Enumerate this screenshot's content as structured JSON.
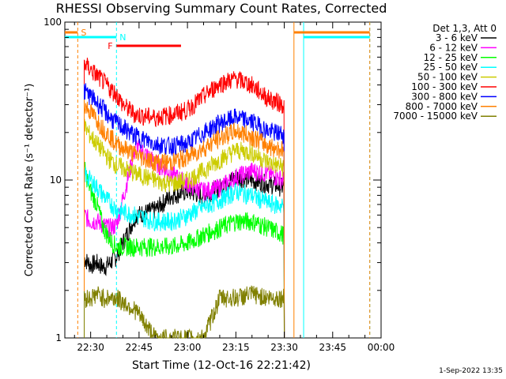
{
  "chart_data": {
    "type": "line",
    "title": "RHESSI Observing Summary Count Rates, Corrected",
    "xlabel": "Start Time (12-Oct-16 22:21:42)",
    "ylabel": "Corrected Count Rate (s⁻¹ detector⁻¹)",
    "y_scale": "log",
    "ylim": [
      1,
      100
    ],
    "xlim_minutes": [
      22.0,
      120.0
    ],
    "x_ticks": [
      "22:30",
      "22:45",
      "23:00",
      "23:15",
      "23:30",
      "23:45",
      "00:00"
    ],
    "x_tick_minutes": [
      30,
      45,
      60,
      75,
      90,
      105,
      120
    ],
    "y_ticks": [
      "1",
      "10",
      "100"
    ],
    "grid": false,
    "legend_title": "Det 1,3, Att 0",
    "legend_position": "right",
    "timestamp": "1-Sep-2022 13:35",
    "flags": [
      {
        "label": "S",
        "color": "#ff8000",
        "start_min": 22.0,
        "end_min": 26.0,
        "resume_min": 93.0,
        "resume_end_min": 116.5
      },
      {
        "label": "N",
        "color": "#00ffff",
        "start_min": 22.0,
        "end_min": 38.0,
        "resume_min": 96.0,
        "resume_end_min": 116.5
      },
      {
        "label": "F",
        "color": "#ff0000",
        "start_min": 38.0,
        "end_min": 58.0
      }
    ],
    "vertical_markers": [
      {
        "minute": 26.0,
        "color": "#ff8000",
        "style": "dashed"
      },
      {
        "minute": 38.0,
        "color": "#00ffff",
        "style": "dashed"
      },
      {
        "minute": 93.0,
        "color": "#ff8000",
        "style": "solid"
      },
      {
        "minute": 96.0,
        "color": "#00ffff",
        "style": "solid"
      },
      {
        "minute": 116.5,
        "color": "#00ffff",
        "style": "dashed"
      },
      {
        "minute": 116.5,
        "color": "#ff8000",
        "style": "dashed"
      }
    ],
    "series": [
      {
        "name": "3 - 6 keV",
        "color": "#000000",
        "x": [
          28,
          30,
          32,
          34,
          36,
          38,
          44,
          50,
          55,
          60,
          65,
          70,
          75,
          80,
          85,
          90
        ],
        "y": [
          3.2,
          2.9,
          3.0,
          2.8,
          3.0,
          3.3,
          6.0,
          6.5,
          8.0,
          8.5,
          8.0,
          9.0,
          10.5,
          10.0,
          9.5,
          9.0
        ]
      },
      {
        "name": "6 - 12 keV",
        "color": "#ff00ff",
        "x": [
          28,
          30,
          32,
          34,
          36,
          38,
          44,
          50,
          55,
          60,
          65,
          70,
          75,
          80,
          85,
          90
        ],
        "y": [
          6.0,
          5.5,
          5.5,
          5.2,
          5.0,
          5.2,
          16.5,
          13.0,
          11.0,
          9.5,
          8.5,
          9.0,
          10.5,
          11.5,
          11.0,
          10.0
        ]
      },
      {
        "name": "12 - 25 keV",
        "color": "#00ff00",
        "x": [
          28,
          30,
          32,
          34,
          36,
          38,
          44,
          50,
          55,
          60,
          65,
          70,
          75,
          80,
          85,
          90
        ],
        "y": [
          12.0,
          8.5,
          7.0,
          5.0,
          4.2,
          3.8,
          3.8,
          3.8,
          3.8,
          4.0,
          4.5,
          5.0,
          5.5,
          5.5,
          5.0,
          4.5
        ]
      },
      {
        "name": "25 - 50 keV",
        "color": "#00ffff",
        "x": [
          28,
          30,
          32,
          34,
          36,
          38,
          44,
          50,
          55,
          60,
          65,
          70,
          75,
          80,
          85,
          90
        ],
        "y": [
          11.0,
          10.0,
          9.0,
          8.0,
          7.2,
          6.5,
          6.0,
          5.5,
          5.5,
          6.0,
          6.8,
          7.5,
          8.5,
          8.0,
          7.2,
          6.8
        ]
      },
      {
        "name": "50 - 100 keV",
        "color": "#cccc00",
        "x": [
          28,
          30,
          32,
          34,
          36,
          38,
          44,
          50,
          55,
          60,
          65,
          70,
          75,
          80,
          85,
          90
        ],
        "y": [
          22.0,
          19.0,
          17.0,
          15.0,
          13.5,
          12.5,
          11.0,
          10.0,
          9.5,
          10.0,
          11.5,
          13.5,
          15.5,
          15.0,
          13.0,
          12.0
        ]
      },
      {
        "name": "100 - 300 keV",
        "color": "#ff0000",
        "x": [
          28,
          30,
          32,
          34,
          36,
          38,
          40,
          44,
          50,
          55,
          60,
          65,
          70,
          75,
          80,
          85,
          90
        ],
        "y": [
          55.0,
          50.0,
          46.0,
          42.0,
          38.0,
          35.0,
          30.0,
          26.0,
          25.0,
          26.0,
          28.0,
          34.0,
          41.0,
          44.0,
          40.0,
          33.0,
          30.0
        ]
      },
      {
        "name": "300 - 800 keV",
        "color": "#0000ff",
        "x": [
          28,
          30,
          32,
          34,
          36,
          38,
          44,
          50,
          55,
          60,
          65,
          70,
          75,
          80,
          85,
          90
        ],
        "y": [
          37.0,
          34.0,
          31.0,
          28.0,
          25.0,
          23.0,
          19.0,
          17.0,
          16.5,
          17.0,
          20.0,
          23.0,
          25.0,
          23.5,
          20.5,
          19.5
        ]
      },
      {
        "name": "800 - 7000 keV",
        "color": "#ff8000",
        "x": [
          28,
          30,
          32,
          34,
          36,
          38,
          44,
          50,
          55,
          60,
          65,
          70,
          75,
          80,
          85,
          90
        ],
        "y": [
          30.0,
          27.0,
          24.0,
          21.0,
          19.0,
          17.0,
          14.5,
          13.0,
          13.0,
          14.0,
          16.0,
          18.5,
          20.5,
          19.0,
          16.5,
          15.5
        ]
      },
      {
        "name": "7000 - 15000 keV",
        "color": "#808000",
        "x": [
          28,
          30,
          32,
          34,
          36,
          38,
          44,
          50,
          55,
          60,
          65,
          70,
          75,
          80,
          85,
          90
        ],
        "y": [
          1.8,
          1.8,
          1.9,
          1.8,
          1.8,
          1.8,
          1.5,
          1.0,
          1.0,
          1.0,
          1.0,
          1.8,
          1.8,
          1.9,
          1.8,
          1.8
        ]
      }
    ]
  }
}
